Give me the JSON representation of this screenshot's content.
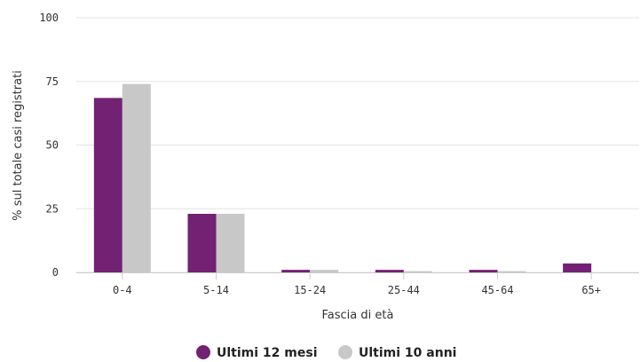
{
  "chart_data": {
    "type": "bar",
    "xlabel": "Fascia di età",
    "ylabel": "% sul totale casi registrati",
    "ylim": [
      0,
      100
    ],
    "yticks": [
      0,
      25,
      50,
      75,
      100
    ],
    "grid": true,
    "legend_position": "bottom-center",
    "categories": [
      "0-4",
      "5-14",
      "15-24",
      "25-44",
      "45-64",
      "65+"
    ],
    "series": [
      {
        "name": "Ultimi 12 mesi",
        "color": "#732173",
        "values": [
          68.5,
          23,
          1,
          1,
          1,
          3.5
        ]
      },
      {
        "name": "Ultimi 10 anni",
        "color": "#c8c8c8",
        "values": [
          74,
          23,
          1,
          0.5,
          0.5,
          0
        ]
      }
    ]
  }
}
